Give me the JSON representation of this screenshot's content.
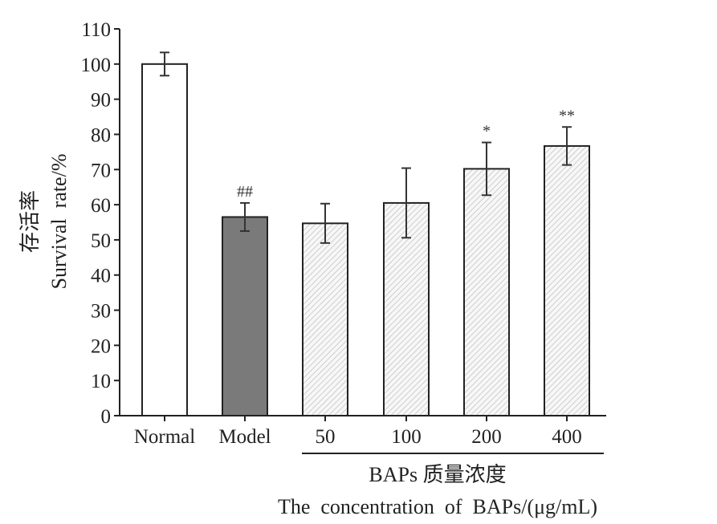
{
  "chart_data": {
    "type": "bar",
    "categories": [
      "Normal",
      "Model",
      "50",
      "100",
      "200",
      "400"
    ],
    "values": [
      100,
      56.5,
      54.7,
      60.5,
      70.2,
      76.7
    ],
    "errors": [
      3.3,
      4.0,
      5.6,
      9.9,
      7.5,
      5.4
    ],
    "annotations": [
      "",
      "##",
      "",
      "",
      "*",
      "**"
    ],
    "fills": [
      "white",
      "#7a7a7a",
      "hatch",
      "hatch",
      "hatch",
      "hatch"
    ],
    "ylim": [
      0,
      110
    ],
    "yticks": [
      0,
      10,
      20,
      30,
      40,
      50,
      60,
      70,
      80,
      90,
      100,
      110
    ],
    "ylabel_zh": "存活率",
    "ylabel": "Survival  rate/%",
    "xgroup_label_zh": "BAPs 质量浓度",
    "xlabel": "The  concentration  of  BAPs/(μg/mL)",
    "grid": false
  }
}
